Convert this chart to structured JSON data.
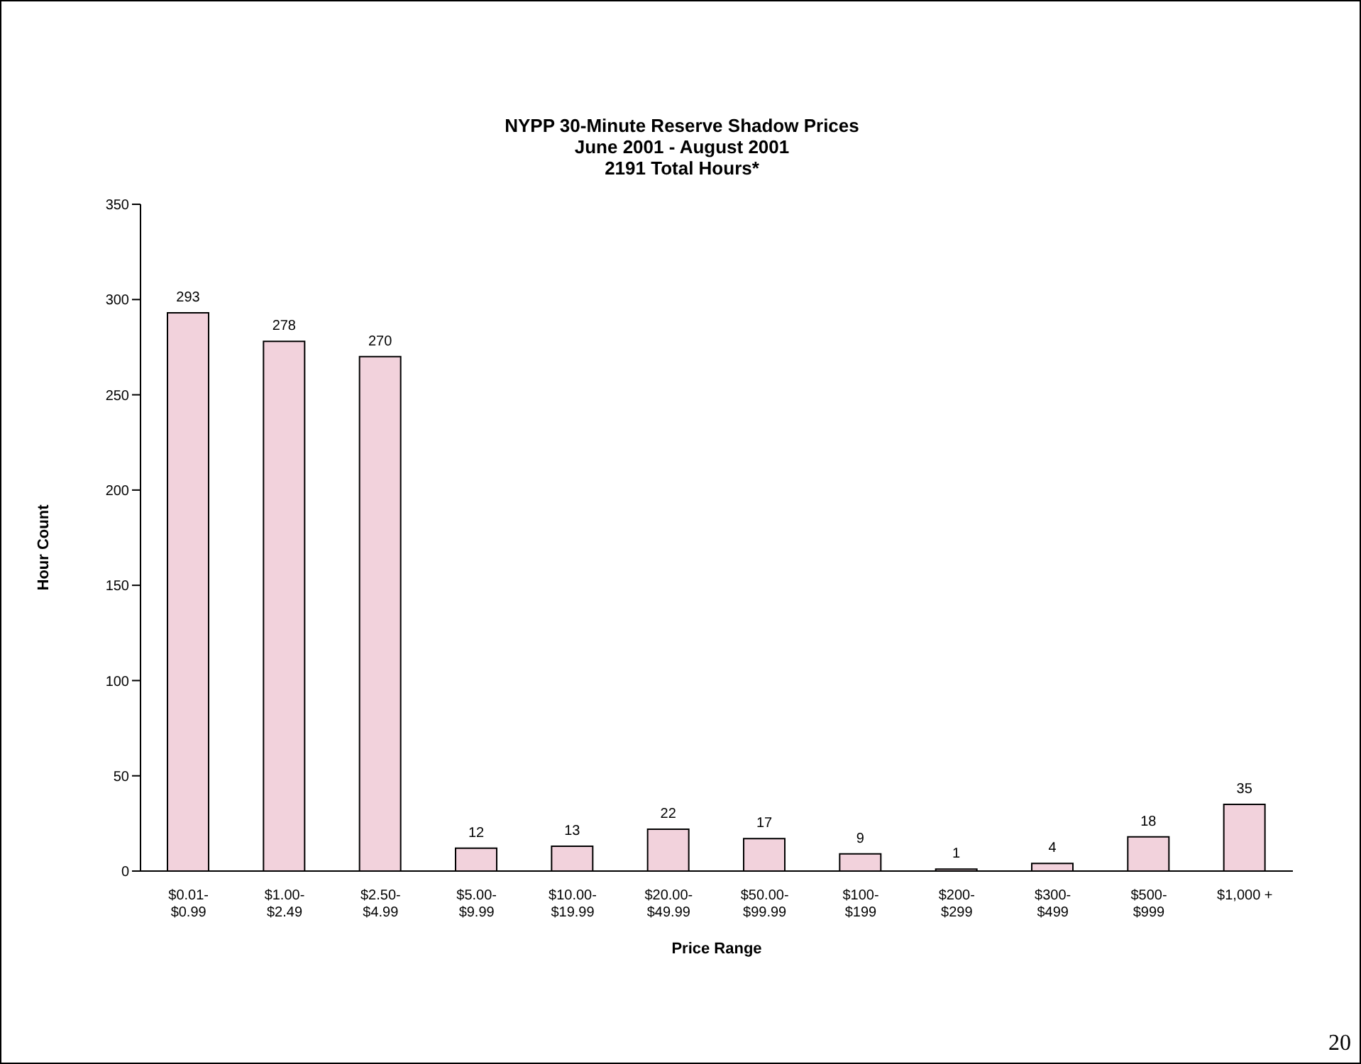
{
  "chart_data": {
    "type": "bar",
    "title": "NYPP 30-Minute Reserve Shadow Prices\nJune 2001 - August 2001\n2191 Total Hours*",
    "xlabel": "Price Range",
    "ylabel": "Hour Count",
    "categories": [
      "$0.01-\n$0.99",
      "$1.00-\n$2.49",
      "$2.50-\n$4.99",
      "$5.00-\n$9.99",
      "$10.00-\n$19.99",
      "$20.00-\n$49.99",
      "$50.00-\n$99.99",
      "$100-\n$199",
      "$200-\n$299",
      "$300-\n$499",
      "$500-\n$999",
      "$1,000 +"
    ],
    "values": [
      293,
      278,
      270,
      12,
      13,
      22,
      17,
      9,
      1,
      4,
      18,
      35
    ],
    "color": "#f2d2dc",
    "ylim": [
      0,
      350
    ],
    "yticks": [
      0,
      50,
      100,
      150,
      200,
      250,
      300,
      350
    ],
    "grid": false,
    "legend": false,
    "data_labels": true,
    "annotations": [
      "20"
    ]
  }
}
